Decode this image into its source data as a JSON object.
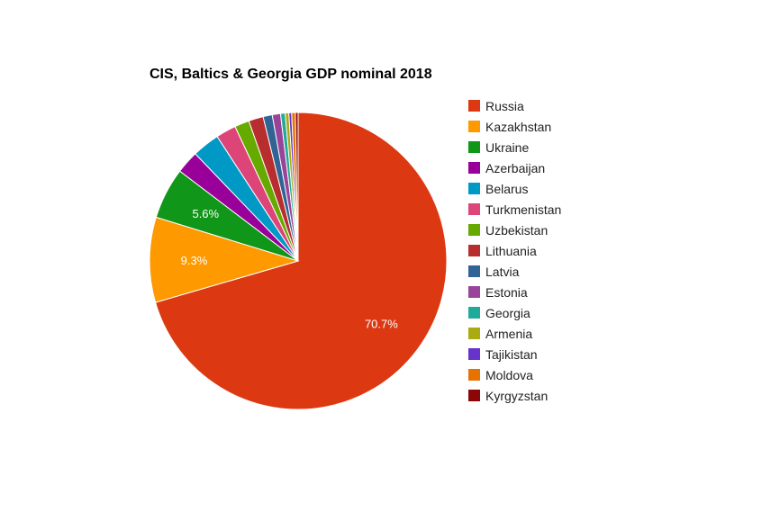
{
  "chart_data": {
    "type": "pie",
    "title": "CIS, Baltics & Georgia GDP nominal 2018",
    "legend_position": "right",
    "start_angle": "12 o'clock, clockwise",
    "slices": [
      {
        "name": "Russia",
        "share": 70.7,
        "color": "#dc3912",
        "label": "70.7%"
      },
      {
        "name": "Kazakhstan",
        "share": 9.3,
        "color": "#ff9900",
        "label": "9.3%"
      },
      {
        "name": "Ukraine",
        "share": 5.6,
        "color": "#109618",
        "label": "5.6%"
      },
      {
        "name": "Azerbaijan",
        "share": 2.5,
        "color": "#990099",
        "label": ""
      },
      {
        "name": "Belarus",
        "share": 3.0,
        "color": "#0099c6",
        "label": ""
      },
      {
        "name": "Turkmenistan",
        "share": 2.2,
        "color": "#dd4477",
        "label": ""
      },
      {
        "name": "Uzbekistan",
        "share": 1.6,
        "color": "#66aa00",
        "label": ""
      },
      {
        "name": "Lithuania",
        "share": 1.6,
        "color": "#b82e2e",
        "label": ""
      },
      {
        "name": "Latvia",
        "share": 1.0,
        "color": "#316395",
        "label": ""
      },
      {
        "name": "Estonia",
        "share": 0.9,
        "color": "#994499",
        "label": ""
      },
      {
        "name": "Georgia",
        "share": 0.5,
        "color": "#22aa99",
        "label": ""
      },
      {
        "name": "Armenia",
        "share": 0.4,
        "color": "#aaaa11",
        "label": ""
      },
      {
        "name": "Tajikistan",
        "share": 0.3,
        "color": "#6633cc",
        "label": ""
      },
      {
        "name": "Moldova",
        "share": 0.4,
        "color": "#e67300",
        "label": ""
      },
      {
        "name": "Kyrgyzstan",
        "share": 0.3,
        "color": "#8b0707",
        "label": ""
      }
    ]
  }
}
